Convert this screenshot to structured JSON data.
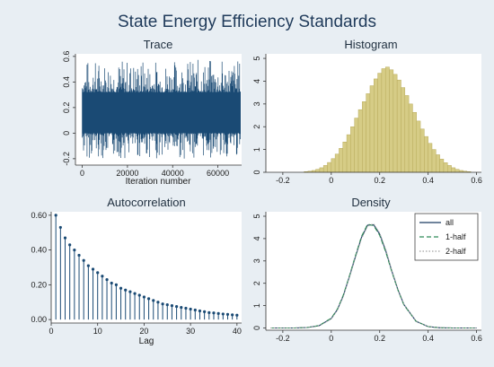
{
  "title": "State Energy Efficiency Standards",
  "colors": {
    "background": "#e8eef3",
    "plot_bg": "#ffffff",
    "trace": "#1a4a74",
    "bar_fill": "#d6cc86",
    "bar_stroke": "#b9ac5d",
    "density_all": "#1a3a62",
    "density_half1": "#2e8b57",
    "density_half2": "#a0a0a0"
  },
  "chart_data": [
    {
      "type": "line",
      "title": "Trace",
      "xlabel": "Iteration number",
      "ylabel": "",
      "xlim": [
        0,
        70000
      ],
      "ylim": [
        -0.25,
        0.62
      ],
      "xticks": [
        0,
        20000,
        40000,
        60000
      ],
      "yticks": [
        -0.2,
        0,
        0.2,
        0.4,
        0.6
      ],
      "ytick_labels": [
        "-0.2",
        "0",
        "0.2",
        "0.4",
        "0.6"
      ],
      "series": [
        {
          "center": 0.16,
          "band_typical": [
            0.0,
            0.32
          ],
          "band_extremes": [
            -0.2,
            0.58
          ],
          "n_iterations": 70000
        }
      ]
    },
    {
      "type": "bar",
      "title": "Histogram",
      "xlabel": "",
      "ylabel": "",
      "xlim": [
        -0.27,
        0.62
      ],
      "ylim": [
        0,
        5.2
      ],
      "xticks": [
        -0.2,
        0,
        0.2,
        0.4,
        0.6
      ],
      "xtick_labels": [
        "-0.2",
        "0",
        "0.2",
        "0.4",
        "0.6"
      ],
      "yticks": [
        0,
        1,
        2,
        3,
        4,
        5
      ],
      "bin_width": 0.016,
      "bin_start": -0.112,
      "values": [
        0.03,
        0.05,
        0.08,
        0.13,
        0.2,
        0.3,
        0.43,
        0.6,
        0.8,
        1.05,
        1.33,
        1.65,
        2.0,
        2.38,
        2.75,
        3.1,
        3.45,
        3.8,
        4.1,
        4.35,
        4.55,
        4.62,
        4.5,
        4.3,
        4.05,
        3.72,
        3.37,
        3.0,
        2.63,
        2.25,
        1.9,
        1.57,
        1.27,
        1.0,
        0.77,
        0.58,
        0.42,
        0.3,
        0.2,
        0.13,
        0.08,
        0.05,
        0.03
      ]
    },
    {
      "type": "bar",
      "title": "Autocorrelation",
      "xlabel": "Lag",
      "ylabel": "",
      "xlim": [
        0,
        41
      ],
      "ylim": [
        -0.02,
        0.62
      ],
      "xticks": [
        0,
        10,
        20,
        30,
        40
      ],
      "yticks": [
        0,
        0.2,
        0.4,
        0.6
      ],
      "ytick_labels": [
        "0.00",
        "0.20",
        "0.40",
        "0.60"
      ],
      "categories": [
        1,
        2,
        3,
        4,
        5,
        6,
        7,
        8,
        9,
        10,
        11,
        12,
        13,
        14,
        15,
        16,
        17,
        18,
        19,
        20,
        21,
        22,
        23,
        24,
        25,
        26,
        27,
        28,
        29,
        30,
        31,
        32,
        33,
        34,
        35,
        36,
        37,
        38,
        39,
        40
      ],
      "values": [
        0.6,
        0.53,
        0.47,
        0.43,
        0.4,
        0.37,
        0.34,
        0.31,
        0.29,
        0.27,
        0.25,
        0.23,
        0.21,
        0.2,
        0.18,
        0.17,
        0.16,
        0.15,
        0.14,
        0.13,
        0.12,
        0.11,
        0.1,
        0.09,
        0.085,
        0.08,
        0.075,
        0.07,
        0.065,
        0.06,
        0.055,
        0.05,
        0.045,
        0.04,
        0.038,
        0.035,
        0.032,
        0.03,
        0.027,
        0.025
      ]
    },
    {
      "type": "line",
      "title": "Density",
      "xlabel": "",
      "ylabel": "",
      "xlim": [
        -0.27,
        0.62
      ],
      "ylim": [
        -0.1,
        5.2
      ],
      "xticks": [
        -0.2,
        0,
        0.2,
        0.4,
        0.6
      ],
      "xtick_labels": [
        "-0.2",
        "0",
        "0.2",
        "0.4",
        "0.6"
      ],
      "yticks": [
        0,
        1,
        2,
        3,
        4,
        5
      ],
      "legend_position": "top-right",
      "x": [
        -0.25,
        -0.2,
        -0.15,
        -0.1,
        -0.05,
        0.0,
        0.025,
        0.05,
        0.075,
        0.1,
        0.125,
        0.15,
        0.175,
        0.2,
        0.225,
        0.25,
        0.275,
        0.3,
        0.35,
        0.4,
        0.45,
        0.5,
        0.55,
        0.6
      ],
      "series": [
        {
          "name": "all",
          "values": [
            0.0,
            0.0,
            0.0,
            0.02,
            0.1,
            0.42,
            0.82,
            1.45,
            2.3,
            3.2,
            4.05,
            4.6,
            4.62,
            4.2,
            3.45,
            2.55,
            1.72,
            1.05,
            0.3,
            0.06,
            0.01,
            0.0,
            0.0,
            0.0
          ]
        },
        {
          "name": "1-half",
          "values": [
            0.0,
            0.0,
            0.0,
            0.02,
            0.11,
            0.44,
            0.84,
            1.48,
            2.33,
            3.24,
            4.1,
            4.64,
            4.58,
            4.15,
            3.4,
            2.52,
            1.7,
            1.03,
            0.3,
            0.06,
            0.01,
            0.0,
            0.0,
            0.0
          ]
        },
        {
          "name": "2-half",
          "values": [
            0.0,
            0.0,
            0.0,
            0.02,
            0.09,
            0.4,
            0.8,
            1.42,
            2.27,
            3.17,
            4.0,
            4.56,
            4.66,
            4.25,
            3.5,
            2.58,
            1.74,
            1.07,
            0.31,
            0.06,
            0.01,
            0.0,
            0.0,
            0.0
          ]
        }
      ]
    }
  ]
}
